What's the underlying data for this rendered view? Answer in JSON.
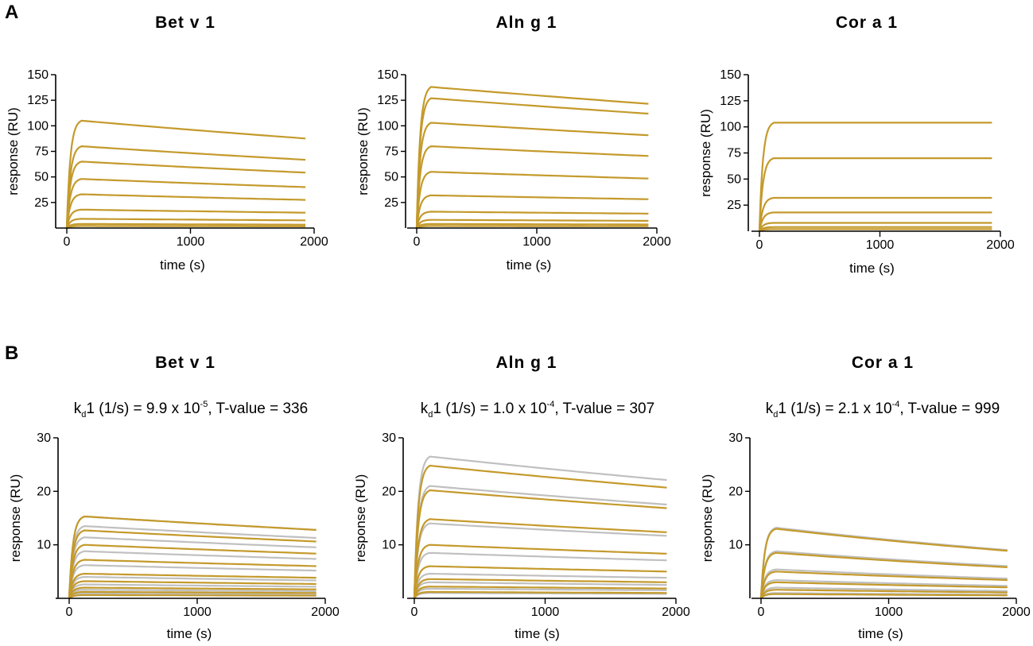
{
  "panel_letters": {
    "a": "A",
    "b": "B"
  },
  "colors": {
    "data": "#c49a2c",
    "fit": "#c0c0c0",
    "axis": "#000000"
  },
  "chart_data": [
    {
      "id": "a-betv1",
      "row": "A",
      "type": "line",
      "title": "Bet v 1",
      "xlabel": "time (s)",
      "ylabel": "response (RU)",
      "xlim": [
        0,
        2000
      ],
      "ylim": [
        0,
        150
      ],
      "xticks": [
        0,
        1000,
        2000
      ],
      "yticks": [
        25,
        50,
        75,
        100,
        125,
        150
      ],
      "injection_end_s": 120,
      "end_s": 1930,
      "series": [
        {
          "name": "data",
          "plateaus": [
            105,
            80,
            65,
            48,
            33,
            18,
            9,
            4,
            2
          ],
          "dissociation_decay": 0.0001
        }
      ]
    },
    {
      "id": "a-alng1",
      "row": "A",
      "type": "line",
      "title": "Aln g 1",
      "xlabel": "time (s)",
      "ylabel": "response (RU)",
      "xlim": [
        0,
        2000
      ],
      "ylim": [
        0,
        150
      ],
      "xticks": [
        0,
        1000,
        2000
      ],
      "yticks": [
        25,
        50,
        75,
        100,
        125,
        150
      ],
      "injection_end_s": 120,
      "end_s": 1930,
      "series": [
        {
          "name": "data",
          "plateaus": [
            138,
            127,
            103,
            80,
            55,
            32,
            16,
            8,
            4,
            2
          ],
          "dissociation_decay": 7e-05
        }
      ]
    },
    {
      "id": "a-cora1",
      "row": "A",
      "type": "line",
      "title": "Cor a 1",
      "xlabel": "time (s)",
      "ylabel": "response (RU)",
      "xlim": [
        0,
        2000
      ],
      "ylim": [
        0,
        150
      ],
      "xticks": [
        0,
        1000,
        2000
      ],
      "yticks": [
        25,
        50,
        75,
        100,
        125,
        150
      ],
      "injection_end_s": 120,
      "end_s": 1930,
      "series": [
        {
          "name": "data",
          "plateaus": [
            104,
            70,
            32,
            18,
            8,
            4,
            2
          ],
          "dissociation_decay": 0.0
        }
      ]
    },
    {
      "id": "b-betv1",
      "row": "B",
      "type": "line",
      "title": "Bet v 1",
      "annotation": {
        "k": "k",
        "sub": "d",
        "pre": "1 (1/s) = 9.9 x 10",
        "sup": "-5",
        "post": ", T-value = 336"
      },
      "xlabel": "time (s)",
      "ylabel": "response (RU)",
      "xlim": [
        0,
        2000
      ],
      "ylim": [
        0,
        30
      ],
      "xticks": [
        0,
        1000,
        2000
      ],
      "yticks": [
        10,
        20,
        30
      ],
      "injection_end_s": 120,
      "end_s": 1930,
      "series": [
        {
          "name": "fit",
          "plateaus": [
            15.3,
            13.5,
            11.4,
            8.8,
            6.2,
            4.0,
            2.6,
            1.6,
            0.9
          ],
          "dissociation_decay": 9.9e-05
        },
        {
          "name": "data",
          "plateaus": [
            15.3,
            12.7,
            10.0,
            7.2,
            4.6,
            3.2,
            2.0,
            1.2,
            0.6
          ],
          "dissociation_decay": 9.9e-05
        }
      ]
    },
    {
      "id": "b-alng1",
      "row": "B",
      "type": "line",
      "title": "Aln g 1",
      "annotation": {
        "k": "k",
        "sub": "d",
        "pre": "1 (1/s) = 1.0 x 10",
        "sup": "-4",
        "post": ", T-value = 307"
      },
      "xlabel": "time (s)",
      "ylabel": "response (RU)",
      "xlim": [
        0,
        2000
      ],
      "ylim": [
        0,
        30
      ],
      "xticks": [
        0,
        1000,
        2000
      ],
      "yticks": [
        10,
        20,
        30
      ],
      "injection_end_s": 120,
      "end_s": 1930,
      "series": [
        {
          "name": "fit",
          "plateaus": [
            26.5,
            21.0,
            14.0,
            8.5,
            4.6,
            3.0,
            1.8,
            1.0
          ],
          "dissociation_decay": 0.0001
        },
        {
          "name": "data",
          "plateaus": [
            24.8,
            20.2,
            14.8,
            10.0,
            6.0,
            3.6,
            2.2,
            1.2
          ],
          "dissociation_decay": 0.0001
        }
      ]
    },
    {
      "id": "b-cora1",
      "row": "B",
      "type": "line",
      "title": "Cor a 1",
      "annotation": {
        "k": "k",
        "sub": "d",
        "pre": "1 (1/s) = 2.1 x 10",
        "sup": "-4",
        "post": ", T-value = 999"
      },
      "xlabel": "time (s)",
      "ylabel": "response (RU)",
      "xlim": [
        0,
        2000
      ],
      "ylim": [
        0,
        30
      ],
      "xticks": [
        0,
        1000,
        2000
      ],
      "yticks": [
        10,
        20,
        30
      ],
      "injection_end_s": 120,
      "end_s": 1930,
      "series": [
        {
          "name": "fit",
          "plateaus": [
            13.2,
            8.8,
            5.4,
            3.4,
            2.0,
            1.0
          ],
          "dissociation_decay": 0.00021
        },
        {
          "name": "data",
          "plateaus": [
            13.0,
            8.5,
            5.0,
            3.0,
            1.6,
            0.8
          ],
          "dissociation_decay": 0.00021
        }
      ]
    }
  ]
}
